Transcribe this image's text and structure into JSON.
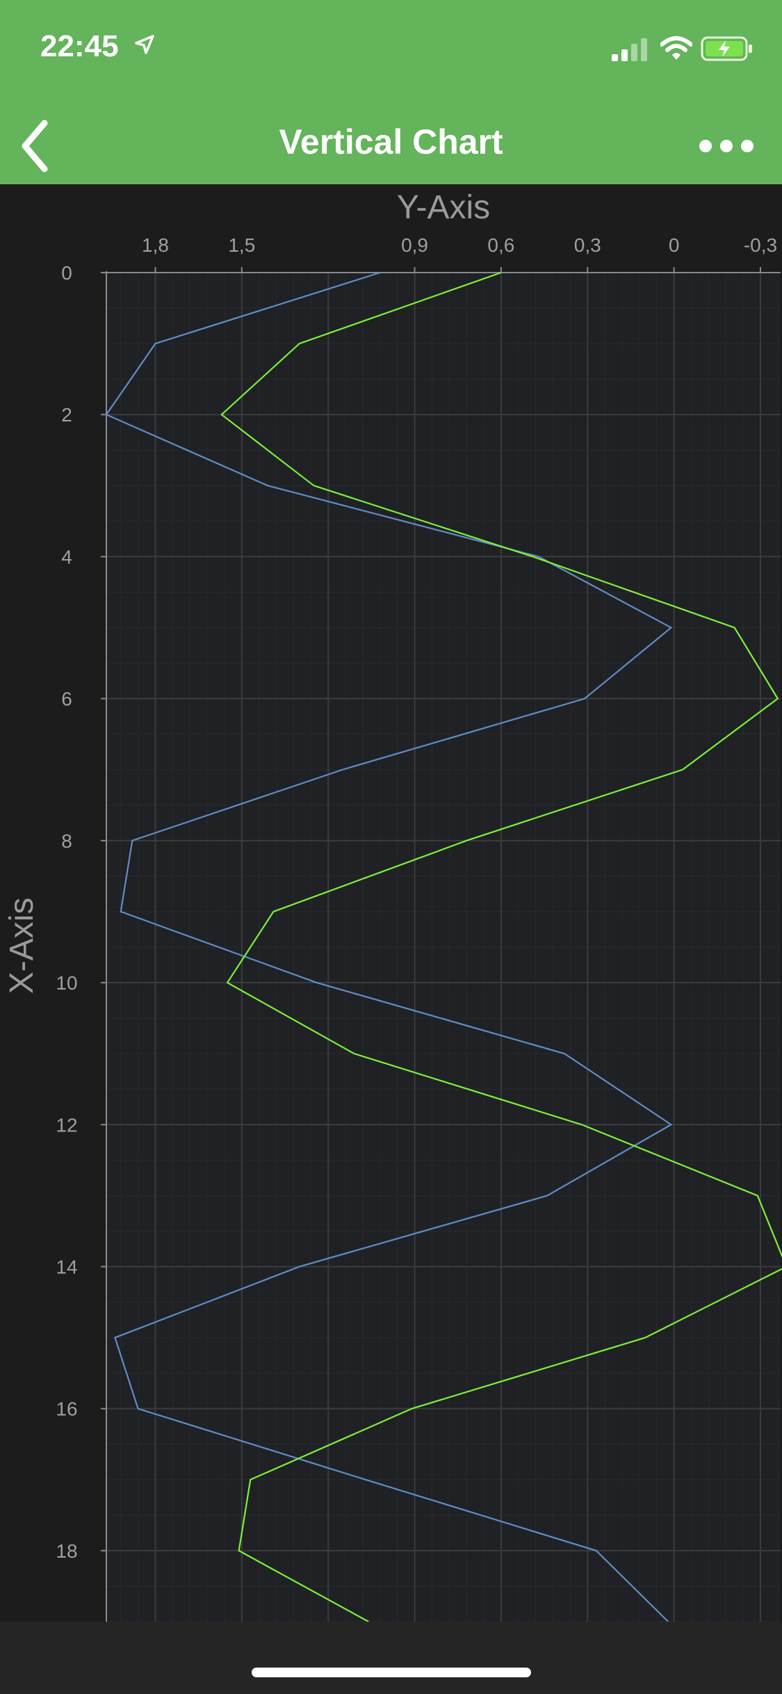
{
  "status": {
    "time": "22:45",
    "icons": [
      "location-arrow-icon",
      "cellular-signal-icon",
      "wifi-icon",
      "battery-charging-icon"
    ]
  },
  "nav": {
    "title": "Vertical Chart",
    "back_icon": "chevron-left-icon",
    "more_icon": "more-dots-icon"
  },
  "colors": {
    "header": "#63b45a",
    "background": "#1c1c1c",
    "plot": "#202124",
    "series1": "#5f8dc8",
    "series2": "#7cf13a"
  },
  "chart_data": {
    "type": "line",
    "orientation": "vertical",
    "xlabel": "X-Axis",
    "ylabel": "Y-Axis",
    "x_axis_position": "left",
    "y_axis_position": "top",
    "y_reversed": true,
    "xlim": [
      0,
      19
    ],
    "ylim": [
      -0.37,
      1.97
    ],
    "x_ticks": [
      "0",
      "2",
      "4",
      "6",
      "8",
      "10",
      "12",
      "14",
      "16",
      "18"
    ],
    "y_ticks": [
      {
        "value": 1.8,
        "label": "1,8"
      },
      {
        "value": 1.5,
        "label": "1,5"
      },
      {
        "value": 0.9,
        "label": "0,9"
      },
      {
        "value": 0.6,
        "label": "0,6"
      },
      {
        "value": 0.3,
        "label": "0,3"
      },
      {
        "value": 0,
        "label": "0"
      },
      {
        "value": -0.3,
        "label": "-0,3"
      }
    ],
    "grid": true,
    "x": [
      0,
      1,
      2,
      3,
      4,
      5,
      6,
      7,
      8,
      9,
      10,
      11,
      12,
      13,
      14,
      15,
      16,
      17,
      18,
      19
    ],
    "series": [
      {
        "values": [
          1.02,
          1.8,
          1.97,
          1.41,
          0.47,
          0.01,
          0.31,
          1.15,
          1.88,
          1.92,
          1.24,
          0.38,
          0.01,
          0.44,
          1.3,
          1.94,
          1.86,
          1.07,
          0.27,
          0.02
        ]
      },
      {
        "values": [
          0.6,
          1.3,
          1.57,
          1.25,
          0.49,
          -0.21,
          -0.36,
          -0.03,
          0.72,
          1.39,
          1.55,
          1.11,
          0.32,
          -0.29,
          -0.39,
          0.1,
          0.91,
          1.47,
          1.51,
          1.06
        ]
      }
    ]
  }
}
